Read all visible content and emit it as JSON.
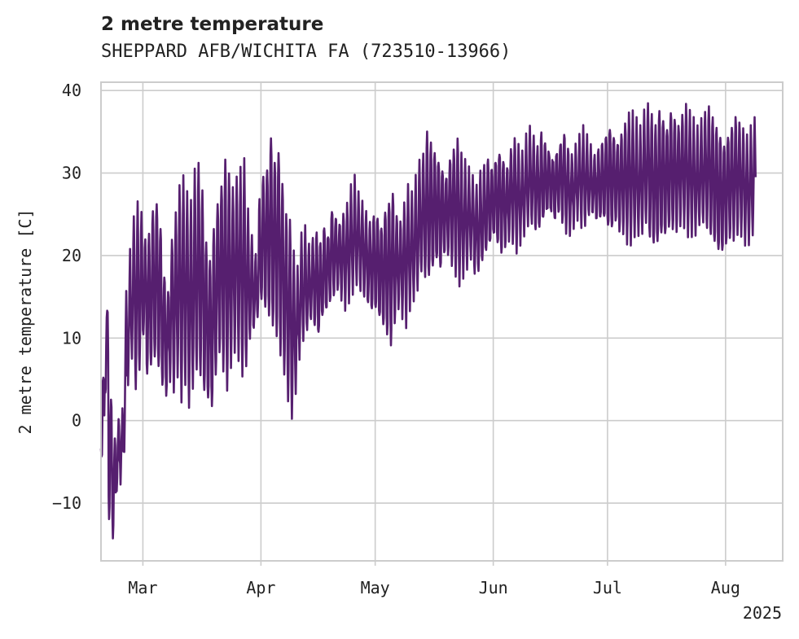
{
  "chart_data": {
    "type": "line",
    "title": "2 metre temperature",
    "subtitle": "SHEPPARD AFB/WICHITA FA (723510-13966)",
    "ylabel": "2 metre temperature [C]",
    "xlabel": "",
    "year_label": "2025",
    "x_range": [
      "2025-02-18",
      "2025-08-16"
    ],
    "ylim": [
      -17,
      41
    ],
    "yticks": [
      -10,
      0,
      10,
      20,
      30,
      40
    ],
    "xticks": [
      {
        "date": "2025-03-01",
        "label": "Mar"
      },
      {
        "date": "2025-04-01",
        "label": "Apr"
      },
      {
        "date": "2025-05-01",
        "label": "May"
      },
      {
        "date": "2025-06-01",
        "label": "Jun"
      },
      {
        "date": "2025-07-01",
        "label": "Jul"
      },
      {
        "date": "2025-08-01",
        "label": "Aug"
      }
    ],
    "grid": true,
    "series": [
      {
        "color": "#561f6f",
        "x": [
          "2025-02-18",
          "2025-02-19",
          "2025-02-20",
          "2025-02-21",
          "2025-02-22",
          "2025-02-23",
          "2025-02-24",
          "2025-02-25",
          "2025-02-26",
          "2025-02-27",
          "2025-02-28",
          "2025-03-01",
          "2025-03-02",
          "2025-03-03",
          "2025-03-04",
          "2025-03-05",
          "2025-03-06",
          "2025-03-07",
          "2025-03-08",
          "2025-03-09",
          "2025-03-10",
          "2025-03-11",
          "2025-03-12",
          "2025-03-13",
          "2025-03-14",
          "2025-03-15",
          "2025-03-16",
          "2025-03-17",
          "2025-03-18",
          "2025-03-19",
          "2025-03-20",
          "2025-03-21",
          "2025-03-22",
          "2025-03-23",
          "2025-03-24",
          "2025-03-25",
          "2025-03-26",
          "2025-03-27",
          "2025-03-28",
          "2025-03-29",
          "2025-03-30",
          "2025-03-31",
          "2025-04-01",
          "2025-04-02",
          "2025-04-03",
          "2025-04-04",
          "2025-04-05",
          "2025-04-06",
          "2025-04-07",
          "2025-04-08",
          "2025-04-09",
          "2025-04-10",
          "2025-04-11",
          "2025-04-12",
          "2025-04-13",
          "2025-04-14",
          "2025-04-15",
          "2025-04-16",
          "2025-04-17",
          "2025-04-18",
          "2025-04-19",
          "2025-04-20",
          "2025-04-21",
          "2025-04-22",
          "2025-04-23",
          "2025-04-24",
          "2025-04-25",
          "2025-04-26",
          "2025-04-27",
          "2025-04-28",
          "2025-04-29",
          "2025-04-30",
          "2025-05-01",
          "2025-05-02",
          "2025-05-03",
          "2025-05-04",
          "2025-05-05",
          "2025-05-06",
          "2025-05-07",
          "2025-05-08",
          "2025-05-09",
          "2025-05-10",
          "2025-05-11",
          "2025-05-12",
          "2025-05-13",
          "2025-05-14",
          "2025-05-15",
          "2025-05-16",
          "2025-05-17",
          "2025-05-18",
          "2025-05-19",
          "2025-05-20",
          "2025-05-21",
          "2025-05-22",
          "2025-05-23",
          "2025-05-24",
          "2025-05-25",
          "2025-05-26",
          "2025-05-27",
          "2025-05-28",
          "2025-05-29",
          "2025-05-30",
          "2025-05-31",
          "2025-06-01",
          "2025-06-02",
          "2025-06-03",
          "2025-06-04",
          "2025-06-05",
          "2025-06-06",
          "2025-06-07",
          "2025-06-08",
          "2025-06-09",
          "2025-06-10",
          "2025-06-11",
          "2025-06-12",
          "2025-06-13",
          "2025-06-14",
          "2025-06-15",
          "2025-06-16",
          "2025-06-17",
          "2025-06-18",
          "2025-06-19",
          "2025-06-20",
          "2025-06-21",
          "2025-06-22",
          "2025-06-23",
          "2025-06-24",
          "2025-06-25",
          "2025-06-26",
          "2025-06-27",
          "2025-06-28",
          "2025-06-29",
          "2025-06-30",
          "2025-07-01",
          "2025-07-02",
          "2025-07-03",
          "2025-07-04",
          "2025-07-05",
          "2025-07-06",
          "2025-07-07",
          "2025-07-08",
          "2025-07-09",
          "2025-07-10",
          "2025-07-11",
          "2025-07-12",
          "2025-07-13",
          "2025-07-14",
          "2025-07-15",
          "2025-07-16",
          "2025-07-17",
          "2025-07-18",
          "2025-07-19",
          "2025-07-20",
          "2025-07-21",
          "2025-07-22",
          "2025-07-23",
          "2025-07-24",
          "2025-07-25",
          "2025-07-26",
          "2025-07-27",
          "2025-07-28",
          "2025-07-29",
          "2025-07-30",
          "2025-07-31",
          "2025-08-01",
          "2025-08-02",
          "2025-08-03",
          "2025-08-04",
          "2025-08-05",
          "2025-08-06",
          "2025-08-07",
          "2025-08-08",
          "2025-08-09",
          "2025-08-10",
          "2025-08-11",
          "2025-08-12",
          "2025-08-13",
          "2025-08-14",
          "2025-08-15",
          "2025-08-16"
        ],
        "min": [
          -5,
          3,
          -12,
          -14,
          -8,
          -7,
          -3,
          5,
          8,
          4,
          6,
          10,
          5,
          6,
          7,
          6,
          4,
          3,
          5,
          4,
          6,
          3,
          5,
          2,
          4,
          6,
          5,
          3,
          2,
          1,
          5,
          8,
          6,
          4,
          7,
          9,
          8,
          6,
          7,
          10,
          11,
          12,
          14,
          13,
          12,
          11,
          10,
          8,
          6,
          3,
          1,
          4,
          8,
          10,
          11,
          12,
          11,
          10,
          12,
          13,
          14,
          15,
          16,
          15,
          14,
          15,
          16,
          17,
          16,
          15,
          14,
          13,
          13,
          12,
          11,
          10,
          9,
          12,
          14,
          13,
          12,
          14,
          15,
          16,
          18,
          17,
          17,
          18,
          19,
          18,
          20,
          20,
          19,
          18,
          17,
          18,
          19,
          20,
          18,
          18,
          19,
          20,
          21,
          22,
          21,
          20,
          21,
          22,
          22,
          21,
          22,
          23,
          24,
          24,
          23,
          23,
          24,
          25,
          25,
          24,
          25,
          24,
          23,
          23,
          24,
          25,
          24,
          24,
          25,
          25,
          24,
          24,
          24,
          23,
          23,
          24,
          23,
          23,
          22,
          22,
          23,
          23,
          23,
          24,
          22,
          21,
          21,
          22,
          22,
          23,
          23,
          23,
          24,
          24,
          23,
          23,
          23,
          24,
          24,
          23,
          22,
          21,
          20,
          20,
          21,
          22,
          22,
          23,
          23,
          22,
          22,
          23
        ],
        "max": [
          6,
          14,
          3,
          -2,
          0,
          1,
          15,
          20,
          24,
          26,
          25,
          22,
          23,
          26,
          27,
          24,
          18,
          16,
          22,
          25,
          28,
          29,
          27,
          26,
          30,
          31,
          28,
          22,
          20,
          24,
          27,
          29,
          32,
          30,
          28,
          29,
          30,
          31,
          25,
          22,
          20,
          27,
          30,
          31,
          35,
          32,
          33,
          29,
          25,
          24,
          20,
          18,
          22,
          23,
          21,
          22,
          23,
          22,
          24,
          23,
          26,
          25,
          24,
          25,
          26,
          28,
          29,
          27,
          26,
          25,
          24,
          25,
          25,
          24,
          26,
          27,
          28,
          25,
          24,
          26,
          28,
          27,
          29,
          31,
          32,
          35,
          34,
          33,
          32,
          31,
          30,
          32,
          33,
          34,
          32,
          31,
          30,
          29,
          28,
          30,
          31,
          32,
          31,
          32,
          33,
          32,
          31,
          33,
          34,
          33,
          32,
          34,
          35,
          34,
          33,
          35,
          34,
          33,
          32,
          33,
          34,
          35,
          33,
          32,
          33,
          34,
          35,
          34,
          33,
          32,
          33,
          34,
          35,
          36,
          35,
          34,
          35,
          36,
          37,
          37,
          36,
          35,
          37,
          38,
          37,
          36,
          38,
          37,
          36,
          38,
          37,
          36,
          37,
          38,
          37,
          36,
          35,
          36,
          37,
          38,
          37,
          36,
          35,
          34,
          35,
          36,
          37,
          36,
          35,
          34,
          35,
          36
        ]
      }
    ]
  }
}
